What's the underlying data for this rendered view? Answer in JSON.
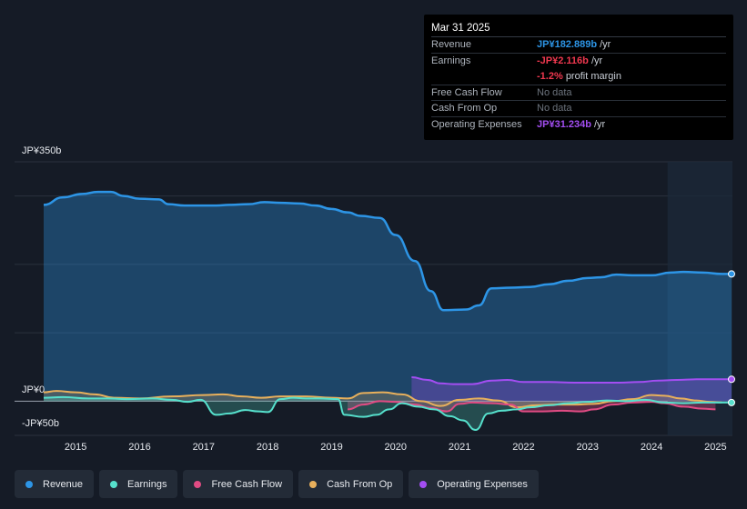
{
  "colors": {
    "revenue": "#2d95e6",
    "earnings": "#56e0cc",
    "free_cash_flow": "#e04b83",
    "cash_from_op": "#e8b05c",
    "operating_expenses": "#a34ef2"
  },
  "tooltip": {
    "date": "Mar 31 2025",
    "rows": {
      "revenue": {
        "label": "Revenue",
        "value": "JP¥182.889b",
        "unit": "/yr"
      },
      "earnings": {
        "label": "Earnings",
        "value": "-JP¥2.116b",
        "unit": "/yr"
      },
      "margin": {
        "value": "-1.2%",
        "unit": "profit margin"
      },
      "fcf": {
        "label": "Free Cash Flow",
        "value": "No data"
      },
      "cfo": {
        "label": "Cash From Op",
        "value": "No data"
      },
      "opex": {
        "label": "Operating Expenses",
        "value": "JP¥31.234b",
        "unit": "/yr"
      }
    }
  },
  "legend": {
    "revenue": "Revenue",
    "earnings": "Earnings",
    "fcf": "Free Cash Flow",
    "cfo": "Cash From Op",
    "opex": "Operating Expenses"
  },
  "chart_data": {
    "type": "line",
    "title": "",
    "xlabel": "",
    "ylabel": "",
    "y_tick_labels": {
      "top": "JP¥350b",
      "zero": "JP¥0",
      "bottom": "-JP¥50b"
    },
    "ylim": [
      -50,
      350
    ],
    "xlim": [
      2014.5,
      2025.25
    ],
    "x_ticks": [
      "2015",
      "2016",
      "2017",
      "2018",
      "2019",
      "2020",
      "2021",
      "2022",
      "2023",
      "2024",
      "2025"
    ],
    "forecast_shading_start": 2024.25,
    "series": [
      {
        "name": "Revenue",
        "key": "revenue",
        "fill": true,
        "points": [
          [
            2014.5,
            287
          ],
          [
            2014.8,
            298
          ],
          [
            2015.1,
            303
          ],
          [
            2015.35,
            306
          ],
          [
            2015.55,
            306
          ],
          [
            2015.75,
            300
          ],
          [
            2016.0,
            296
          ],
          [
            2016.3,
            295
          ],
          [
            2016.45,
            288
          ],
          [
            2016.7,
            286
          ],
          [
            2016.9,
            286
          ],
          [
            2017.2,
            286
          ],
          [
            2017.4,
            287
          ],
          [
            2017.7,
            288
          ],
          [
            2017.95,
            291
          ],
          [
            2018.2,
            290
          ],
          [
            2018.5,
            289
          ],
          [
            2018.75,
            286
          ],
          [
            2019.0,
            281
          ],
          [
            2019.25,
            276
          ],
          [
            2019.45,
            271
          ],
          [
            2019.75,
            268
          ],
          [
            2020.0,
            243
          ],
          [
            2020.3,
            205
          ],
          [
            2020.55,
            161
          ],
          [
            2020.75,
            133
          ],
          [
            2021.1,
            134
          ],
          [
            2021.3,
            140
          ],
          [
            2021.5,
            165
          ],
          [
            2021.8,
            166
          ],
          [
            2022.1,
            167
          ],
          [
            2022.4,
            171
          ],
          [
            2022.7,
            176
          ],
          [
            2023.0,
            180
          ],
          [
            2023.2,
            181
          ],
          [
            2023.45,
            185
          ],
          [
            2023.7,
            184
          ],
          [
            2024.0,
            184
          ],
          [
            2024.3,
            188
          ],
          [
            2024.5,
            189
          ],
          [
            2024.8,
            188
          ],
          [
            2025.1,
            186
          ],
          [
            2025.25,
            186
          ]
        ]
      },
      {
        "name": "Earnings",
        "key": "earnings",
        "fill": true,
        "points": [
          [
            2014.5,
            5
          ],
          [
            2014.8,
            6
          ],
          [
            2015.2,
            4
          ],
          [
            2015.5,
            4
          ],
          [
            2015.8,
            3
          ],
          [
            2016.2,
            4
          ],
          [
            2016.5,
            2
          ],
          [
            2016.75,
            -1
          ],
          [
            2016.95,
            2
          ],
          [
            2017.2,
            -20
          ],
          [
            2017.4,
            -18
          ],
          [
            2017.65,
            -13
          ],
          [
            2017.85,
            -15
          ],
          [
            2018.0,
            -16
          ],
          [
            2018.2,
            3
          ],
          [
            2018.4,
            5
          ],
          [
            2018.6,
            4
          ],
          [
            2018.8,
            4
          ],
          [
            2019.1,
            3
          ],
          [
            2019.2,
            -20
          ],
          [
            2019.5,
            -23
          ],
          [
            2019.7,
            -20
          ],
          [
            2019.9,
            -12
          ],
          [
            2020.1,
            -3
          ],
          [
            2020.35,
            -8
          ],
          [
            2020.6,
            -12
          ],
          [
            2020.85,
            -22
          ],
          [
            2021.05,
            -28
          ],
          [
            2021.25,
            -42
          ],
          [
            2021.45,
            -18
          ],
          [
            2021.65,
            -14
          ],
          [
            2021.9,
            -12
          ],
          [
            2022.1,
            -9
          ],
          [
            2022.4,
            -6
          ],
          [
            2022.7,
            -3
          ],
          [
            2023.0,
            -1
          ],
          [
            2023.3,
            1
          ],
          [
            2023.6,
            0
          ],
          [
            2023.9,
            2
          ],
          [
            2024.2,
            -2
          ],
          [
            2024.5,
            -3
          ],
          [
            2024.8,
            -2
          ],
          [
            2025.25,
            -2
          ]
        ]
      },
      {
        "name": "Free Cash Flow",
        "key": "free_cash_flow",
        "fill": true,
        "points": [
          [
            2019.25,
            -12
          ],
          [
            2019.5,
            -5
          ],
          [
            2019.75,
            0
          ],
          [
            2020.0,
            -1
          ],
          [
            2020.3,
            -5
          ],
          [
            2020.55,
            -10
          ],
          [
            2020.8,
            -15
          ],
          [
            2021.0,
            -4
          ],
          [
            2021.2,
            -2
          ],
          [
            2021.5,
            -3
          ],
          [
            2021.8,
            -5
          ],
          [
            2022.0,
            -15
          ],
          [
            2022.3,
            -15
          ],
          [
            2022.6,
            -14
          ],
          [
            2022.9,
            -15
          ],
          [
            2023.1,
            -12
          ],
          [
            2023.4,
            -5
          ],
          [
            2023.7,
            -2
          ],
          [
            2024.0,
            -1
          ],
          [
            2024.2,
            -3
          ],
          [
            2024.5,
            -8
          ],
          [
            2024.8,
            -11
          ],
          [
            2025.0,
            -12
          ]
        ]
      },
      {
        "name": "Cash From Op",
        "key": "cash_from_op",
        "fill": true,
        "points": [
          [
            2014.5,
            13
          ],
          [
            2014.7,
            15
          ],
          [
            2015.0,
            13
          ],
          [
            2015.3,
            10
          ],
          [
            2015.6,
            5
          ],
          [
            2016.0,
            4
          ],
          [
            2016.5,
            7
          ],
          [
            2017.0,
            9
          ],
          [
            2017.3,
            10
          ],
          [
            2017.6,
            7
          ],
          [
            2017.9,
            5
          ],
          [
            2018.2,
            7
          ],
          [
            2018.6,
            7
          ],
          [
            2019.0,
            5
          ],
          [
            2019.25,
            4
          ],
          [
            2019.5,
            12
          ],
          [
            2019.8,
            13
          ],
          [
            2020.1,
            10
          ],
          [
            2020.4,
            0
          ],
          [
            2020.7,
            -7
          ],
          [
            2021.0,
            2
          ],
          [
            2021.3,
            4
          ],
          [
            2021.6,
            1
          ],
          [
            2021.9,
            -9
          ],
          [
            2022.2,
            -6
          ],
          [
            2022.5,
            -5
          ],
          [
            2022.8,
            -5
          ],
          [
            2023.1,
            -4
          ],
          [
            2023.4,
            0
          ],
          [
            2023.7,
            3
          ],
          [
            2024.0,
            9
          ],
          [
            2024.2,
            8
          ],
          [
            2024.45,
            4
          ],
          [
            2024.7,
            1
          ],
          [
            2024.9,
            -1
          ],
          [
            2025.1,
            -2
          ]
        ]
      },
      {
        "name": "Operating Expenses",
        "key": "operating_expenses",
        "fill": true,
        "points": [
          [
            2020.25,
            35
          ],
          [
            2020.5,
            31
          ],
          [
            2020.7,
            26
          ],
          [
            2020.9,
            25
          ],
          [
            2021.2,
            25
          ],
          [
            2021.5,
            30
          ],
          [
            2021.75,
            31
          ],
          [
            2022.0,
            28
          ],
          [
            2022.4,
            28
          ],
          [
            2022.8,
            27
          ],
          [
            2023.2,
            27
          ],
          [
            2023.5,
            27
          ],
          [
            2023.8,
            28
          ],
          [
            2024.1,
            30
          ],
          [
            2024.4,
            31
          ],
          [
            2024.7,
            32
          ],
          [
            2025.0,
            32
          ],
          [
            2025.25,
            32
          ]
        ]
      }
    ]
  }
}
